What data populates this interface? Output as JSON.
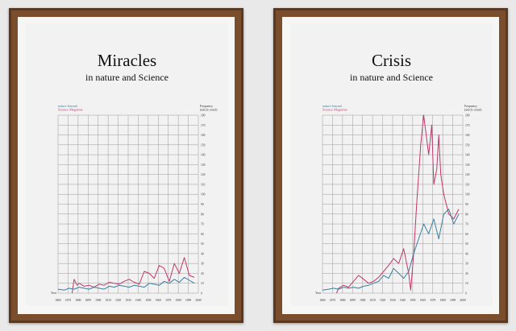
{
  "posters": [
    {
      "title": "Miracles",
      "subtitle": "in nature and Science",
      "legend": [
        {
          "label": "nature Journal",
          "color": "#3a7f9c"
        },
        {
          "label": "Science Magazine",
          "color": "#c0386a"
        }
      ],
      "ylabel_lines": [
        "Frequency",
        "(article count)"
      ],
      "xlabel": "Year",
      "chart_data": {
        "type": "line",
        "x_ticks": [
          1869,
          1879,
          1889,
          1899,
          1909,
          1919,
          1929,
          1939,
          1949,
          1959,
          1969,
          1979,
          1989,
          1999,
          2009
        ],
        "y_ticks": [
          0,
          10,
          20,
          30,
          40,
          50,
          60,
          70,
          80,
          90,
          100,
          110,
          120,
          130,
          140,
          150,
          160,
          170,
          180
        ],
        "xlim": [
          1869,
          2009
        ],
        "ylim": [
          0,
          180
        ],
        "grid": true,
        "series": [
          {
            "name": "nature Journal",
            "x": [
              1869,
              1875,
              1880,
              1885,
              1890,
              1895,
              1900,
              1905,
              1910,
              1915,
              1920,
              1925,
              1930,
              1935,
              1940,
              1945,
              1950,
              1955,
              1960,
              1965,
              1970,
              1975,
              1980,
              1985,
              1990,
              1995,
              2000,
              2005
            ],
            "y": [
              4,
              3,
              5,
              4,
              6,
              5,
              4,
              6,
              5,
              4,
              7,
              6,
              8,
              7,
              6,
              8,
              7,
              6,
              10,
              9,
              8,
              12,
              10,
              14,
              11,
              16,
              13,
              10
            ]
          },
          {
            "name": "Science Magazine",
            "x": [
              1883,
              1885,
              1888,
              1890,
              1895,
              1900,
              1905,
              1910,
              1915,
              1920,
              1925,
              1930,
              1935,
              1940,
              1945,
              1950,
              1955,
              1960,
              1965,
              1970,
              1975,
              1980,
              1985,
              1990,
              1995,
              2000,
              2005
            ],
            "y": [
              0,
              14,
              8,
              10,
              7,
              8,
              6,
              9,
              8,
              11,
              10,
              9,
              12,
              14,
              11,
              9,
              22,
              20,
              15,
              28,
              25,
              12,
              30,
              20,
              36,
              18,
              16
            ]
          }
        ]
      }
    },
    {
      "title": "Crisis",
      "subtitle": "in nature and Science",
      "legend": [
        {
          "label": "nature Journal",
          "color": "#3a7f9c"
        },
        {
          "label": "Science Magazine",
          "color": "#c0386a"
        }
      ],
      "ylabel_lines": [
        "Frequency",
        "(article count)"
      ],
      "xlabel": "Year",
      "chart_data": {
        "type": "line",
        "x_ticks": [
          1869,
          1879,
          1889,
          1899,
          1909,
          1919,
          1929,
          1939,
          1949,
          1959,
          1969,
          1979,
          1989,
          1999,
          2009
        ],
        "y_ticks": [
          0,
          10,
          20,
          30,
          40,
          50,
          60,
          70,
          80,
          90,
          100,
          110,
          120,
          130,
          140,
          150,
          160,
          170,
          180
        ],
        "xlim": [
          1869,
          2009
        ],
        "ylim": [
          0,
          180
        ],
        "grid": true,
        "series": [
          {
            "name": "nature Journal",
            "x": [
              1869,
              1875,
              1880,
              1885,
              1890,
              1895,
              1900,
              1905,
              1910,
              1915,
              1920,
              1925,
              1930,
              1935,
              1940,
              1945,
              1950,
              1955,
              1960,
              1965,
              1970,
              1975,
              1980,
              1985,
              1990,
              1995,
              2000,
              2005
            ],
            "y": [
              3,
              4,
              5,
              4,
              6,
              5,
              6,
              5,
              7,
              8,
              10,
              12,
              18,
              15,
              25,
              20,
              15,
              22,
              40,
              55,
              70,
              60,
              75,
              55,
              80,
              85,
              70,
              80
            ]
          },
          {
            "name": "Science Magazine",
            "x": [
              1883,
              1885,
              1890,
              1895,
              1900,
              1905,
              1910,
              1915,
              1920,
              1925,
              1930,
              1935,
              1940,
              1945,
              1950,
              1955,
              1957,
              1960,
              1963,
              1965,
              1967,
              1970,
              1975,
              1978,
              1980,
              1983,
              1985,
              1987,
              1990,
              1995,
              2000,
              2005
            ],
            "y": [
              0,
              5,
              8,
              6,
              12,
              18,
              14,
              10,
              12,
              16,
              22,
              28,
              35,
              30,
              45,
              20,
              3,
              40,
              90,
              120,
              150,
              180,
              140,
              170,
              110,
              125,
              160,
              120,
              100,
              80,
              75,
              85
            ]
          }
        ]
      }
    }
  ]
}
